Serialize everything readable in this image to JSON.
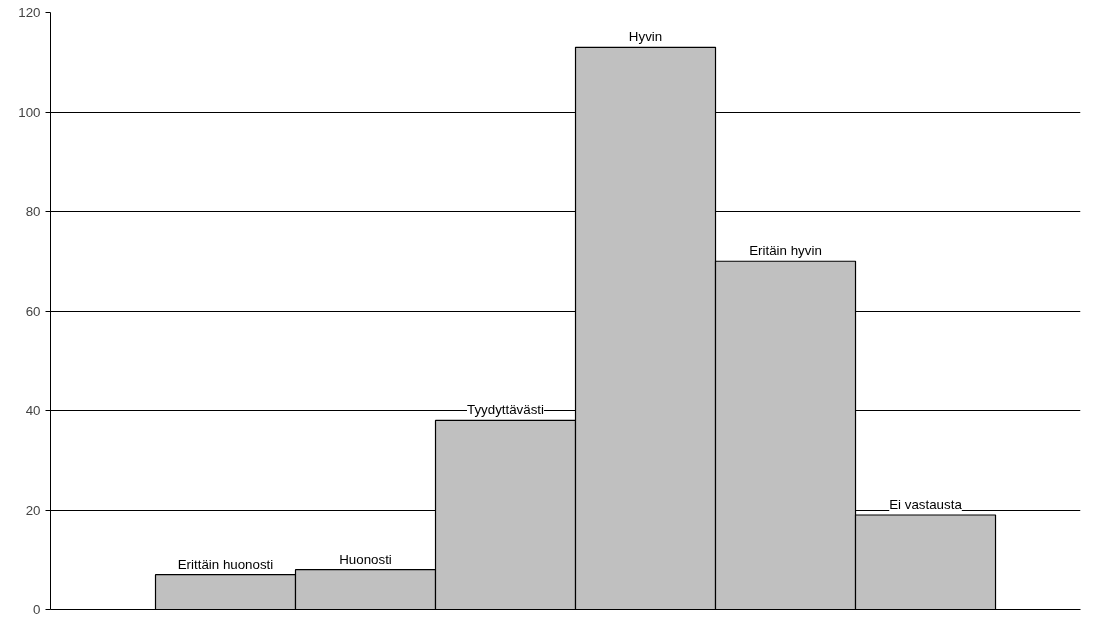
{
  "chart_data": {
    "type": "bar",
    "categories": [
      "Erittäin huonosti",
      "Huonosti",
      "Tyydyttävästi",
      "Hyvin",
      "Eritäin hyvin",
      "Ei vastausta"
    ],
    "values": [
      7,
      8,
      38,
      113,
      70,
      19
    ],
    "color": "#c0c0c0",
    "ylim": [
      0,
      120
    ],
    "yticks": [
      0,
      20,
      40,
      60,
      80,
      100,
      120
    ],
    "grid": "y",
    "tick_labels": "y"
  }
}
